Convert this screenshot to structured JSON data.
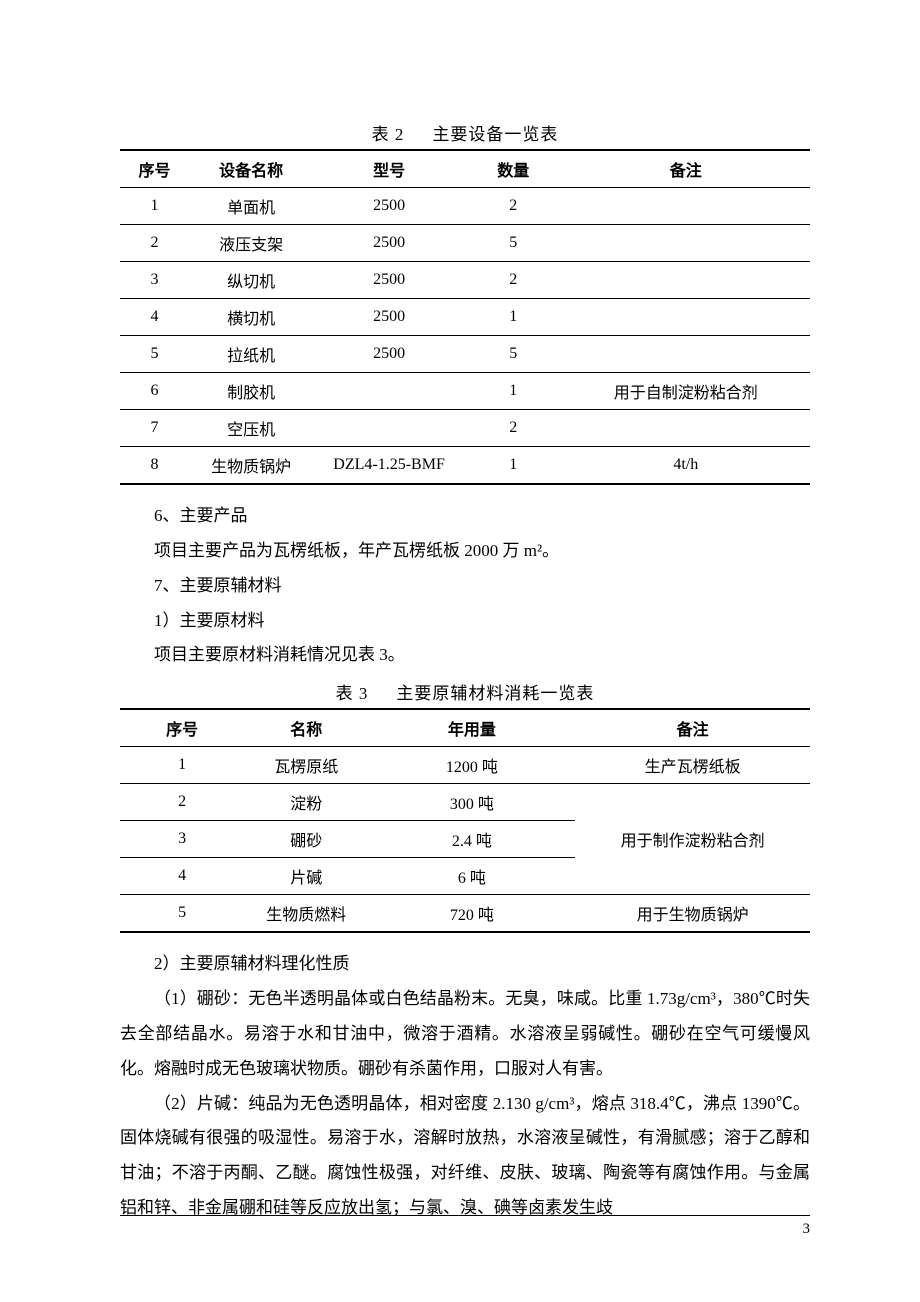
{
  "table1": {
    "caption_prefix": "表 2",
    "caption_title": "主要设备一览表",
    "columns": [
      "序号",
      "设备名称",
      "型号",
      "数量",
      "备注"
    ],
    "rows": [
      [
        "1",
        "单面机",
        "2500",
        "2",
        ""
      ],
      [
        "2",
        "液压支架",
        "2500",
        "5",
        ""
      ],
      [
        "3",
        "纵切机",
        "2500",
        "2",
        ""
      ],
      [
        "4",
        "横切机",
        "2500",
        "1",
        ""
      ],
      [
        "5",
        "拉纸机",
        "2500",
        "5",
        ""
      ],
      [
        "6",
        "制胶机",
        "",
        "1",
        "用于自制淀粉粘合剂"
      ],
      [
        "7",
        "空压机",
        "",
        "2",
        ""
      ],
      [
        "8",
        "生物质锅炉",
        "DZL4-1.25-BMF",
        "1",
        "4t/h"
      ]
    ]
  },
  "body": {
    "h6": "6、主要产品",
    "p6": "项目主要产品为瓦楞纸板，年产瓦楞纸板 2000 万 m²。",
    "h7": "7、主要原辅材料",
    "h7_1": "1）主要原材料",
    "p7_1": "项目主要原材料消耗情况见表 3。",
    "h7_2": "2）主要原辅材料理化性质",
    "p_borax": "（1）硼砂：无色半透明晶体或白色结晶粉末。无臭，味咸。比重 1.73g/cm³，380℃时失去全部结晶水。易溶于水和甘油中，微溶于酒精。水溶液呈弱碱性。硼砂在空气可缓慢风化。熔融时成无色玻璃状物质。硼砂有杀菌作用，口服对人有害。",
    "p_alkali": "（2）片碱：纯品为无色透明晶体，相对密度 2.130 g/cm³，熔点 318.4℃，沸点 1390℃。固体烧碱有很强的吸湿性。易溶于水，溶解时放热，水溶液呈碱性，有滑腻感；溶于乙醇和甘油；不溶于丙酮、乙醚。腐蚀性极强，对纤维、皮肤、玻璃、陶瓷等有腐蚀作用。与金属铝和锌、非金属硼和硅等反应放出氢；与氯、溴、碘等卤素发生歧"
  },
  "table2": {
    "caption_prefix": "表 3",
    "caption_title": "主要原辅材料消耗一览表",
    "columns": [
      "序号",
      "名称",
      "年用量",
      "备注"
    ],
    "rows_header_note": "生产瓦楞纸板",
    "rows": [
      [
        "1",
        "瓦楞原纸",
        "1200 吨"
      ],
      [
        "2",
        "淀粉",
        "300 吨"
      ],
      [
        "3",
        "硼砂",
        "2.4 吨"
      ],
      [
        "4",
        "片碱",
        "6 吨"
      ],
      [
        "5",
        "生物质燃料",
        "720 吨"
      ]
    ],
    "note1": "生产瓦楞纸板",
    "note_merged": "用于制作淀粉粘合剂",
    "note5": "用于生物质锅炉"
  },
  "page_number": "3"
}
